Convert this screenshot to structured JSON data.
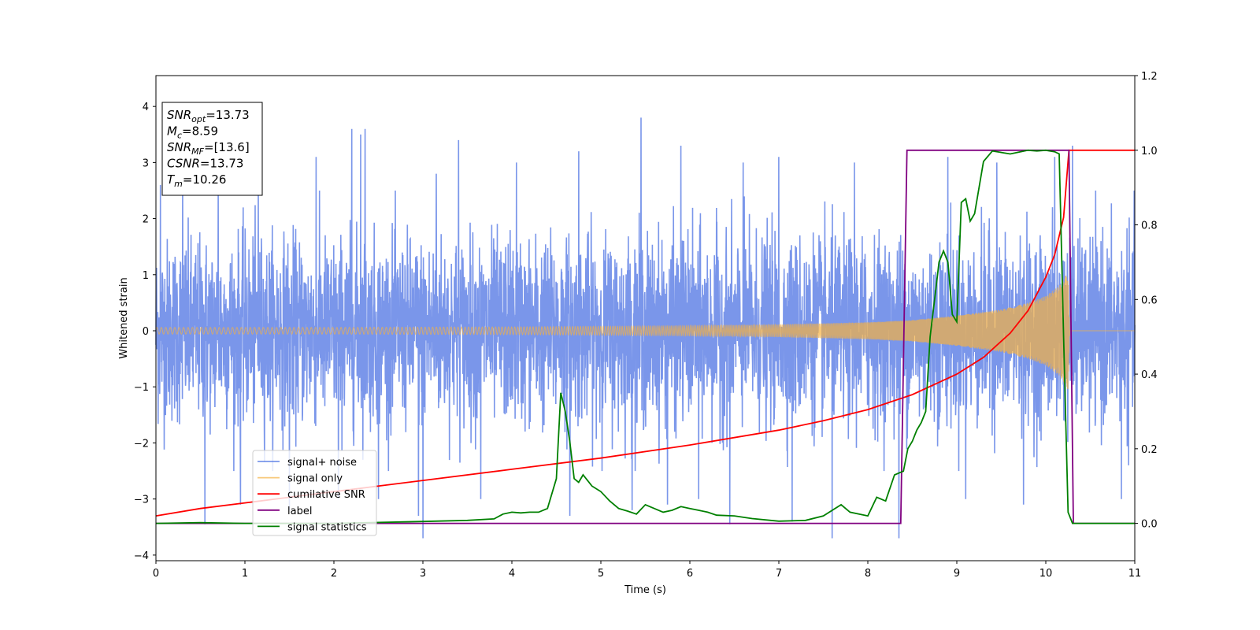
{
  "chart_data": {
    "type": "line",
    "xlabel": "Time (s)",
    "ylabel": "Whitened strain",
    "xlim": [
      0,
      11
    ],
    "ylim_left": [
      -4.1,
      4.55
    ],
    "ylim_right": [
      -0.1,
      1.2
    ],
    "x_ticks": [
      "0",
      "1",
      "2",
      "3",
      "4",
      "5",
      "6",
      "7",
      "8",
      "9",
      "10",
      "11"
    ],
    "y_left_ticks": [
      "−4",
      "−3",
      "−2",
      "−1",
      "0",
      "1",
      "2",
      "3",
      "4"
    ],
    "y_right_ticks": [
      "0.0",
      "0.2",
      "0.4",
      "0.6",
      "0.8",
      "1.0",
      "1.2"
    ],
    "legend_position": "lower-left",
    "info_box": [
      {
        "base": "SNR",
        "sub": "opt",
        "rest": "=13.73"
      },
      {
        "base": "M",
        "sub": "c",
        "rest": "=8.59"
      },
      {
        "base": "SNR",
        "sub": "MF",
        "rest": "=[13.6]"
      },
      {
        "base": "CSNR",
        "sub": "",
        "rest": "=13.73"
      },
      {
        "base": "T",
        "sub": "m",
        "rest": "=10.26"
      }
    ],
    "series": [
      {
        "name": "signal+ noise",
        "axis": "left",
        "color": "#4169e1",
        "kind": "noise",
        "approx_std": 0.95,
        "spikes": [
          [
            0.05,
            2.6
          ],
          [
            0.3,
            2.7
          ],
          [
            0.55,
            -3.45
          ],
          [
            0.7,
            2.5
          ],
          [
            0.95,
            -3.1
          ],
          [
            1.15,
            2.6
          ],
          [
            1.5,
            -3.2
          ],
          [
            1.8,
            3.1
          ],
          [
            2.05,
            -3.0
          ],
          [
            2.2,
            3.6
          ],
          [
            2.3,
            3.5
          ],
          [
            2.35,
            3.6
          ],
          [
            2.5,
            -3.0
          ],
          [
            2.95,
            -3.3
          ],
          [
            3.0,
            -3.7
          ],
          [
            3.15,
            2.8
          ],
          [
            3.4,
            3.4
          ],
          [
            3.65,
            -3.0
          ],
          [
            4.05,
            3.0
          ],
          [
            4.65,
            -3.3
          ],
          [
            4.75,
            3.2
          ],
          [
            5.35,
            -3.2
          ],
          [
            5.45,
            3.8
          ],
          [
            5.75,
            -3.1
          ],
          [
            5.9,
            3.3
          ],
          [
            6.1,
            -3.0
          ],
          [
            6.45,
            -3.45
          ],
          [
            6.6,
            3.0
          ],
          [
            7.0,
            3.1
          ],
          [
            7.15,
            -3.4
          ],
          [
            7.6,
            -3.7
          ],
          [
            7.85,
            3.0
          ],
          [
            8.35,
            -3.7
          ],
          [
            8.9,
            3.1
          ],
          [
            9.1,
            -3.0
          ],
          [
            9.45,
            3.0
          ],
          [
            9.75,
            -3.1
          ],
          [
            10.1,
            3.1
          ],
          [
            10.3,
            3.3
          ],
          [
            10.85,
            -3.0
          ]
        ]
      },
      {
        "name": "signal only",
        "axis": "left",
        "color": "#f5b041",
        "kind": "chirp",
        "amplitude": [
          [
            0,
            0.06
          ],
          [
            2,
            0.06
          ],
          [
            4,
            0.07
          ],
          [
            6,
            0.09
          ],
          [
            7,
            0.11
          ],
          [
            8,
            0.15
          ],
          [
            8.5,
            0.19
          ],
          [
            9,
            0.27
          ],
          [
            9.5,
            0.38
          ],
          [
            9.8,
            0.5
          ],
          [
            10.0,
            0.62
          ],
          [
            10.15,
            0.8
          ],
          [
            10.25,
            1.05
          ],
          [
            10.27,
            0.0
          ],
          [
            11,
            0.0
          ]
        ]
      },
      {
        "name": "cumilative SNR",
        "axis": "right",
        "color": "#ff0000",
        "points": [
          [
            0,
            0.02
          ],
          [
            0.5,
            0.04
          ],
          [
            1,
            0.055
          ],
          [
            2,
            0.085
          ],
          [
            3,
            0.115
          ],
          [
            4,
            0.145
          ],
          [
            5,
            0.175
          ],
          [
            6,
            0.21
          ],
          [
            7,
            0.25
          ],
          [
            7.5,
            0.275
          ],
          [
            8,
            0.305
          ],
          [
            8.5,
            0.345
          ],
          [
            9,
            0.4
          ],
          [
            9.3,
            0.445
          ],
          [
            9.6,
            0.51
          ],
          [
            9.8,
            0.57
          ],
          [
            10.0,
            0.66
          ],
          [
            10.1,
            0.72
          ],
          [
            10.2,
            0.82
          ],
          [
            10.26,
            1.0
          ],
          [
            11,
            1.0
          ]
        ]
      },
      {
        "name": "label",
        "axis": "right",
        "color": "#800080",
        "points": [
          [
            0,
            0.0
          ],
          [
            8.37,
            0.0
          ],
          [
            8.44,
            1.0
          ],
          [
            10.26,
            1.0
          ],
          [
            10.31,
            0.0
          ],
          [
            11,
            0.0
          ]
        ]
      },
      {
        "name": "signal statistics",
        "axis": "right",
        "color": "#008000",
        "points": [
          [
            0,
            0.0
          ],
          [
            0.5,
            0.002
          ],
          [
            1,
            0.0
          ],
          [
            2,
            0.0
          ],
          [
            3,
            0.005
          ],
          [
            3.5,
            0.008
          ],
          [
            3.8,
            0.012
          ],
          [
            3.9,
            0.025
          ],
          [
            4.0,
            0.03
          ],
          [
            4.1,
            0.028
          ],
          [
            4.2,
            0.03
          ],
          [
            4.3,
            0.03
          ],
          [
            4.4,
            0.04
          ],
          [
            4.5,
            0.12
          ],
          [
            4.55,
            0.35
          ],
          [
            4.6,
            0.3
          ],
          [
            4.65,
            0.22
          ],
          [
            4.7,
            0.12
          ],
          [
            4.75,
            0.11
          ],
          [
            4.8,
            0.13
          ],
          [
            4.9,
            0.1
          ],
          [
            5.0,
            0.085
          ],
          [
            5.1,
            0.06
          ],
          [
            5.2,
            0.04
          ],
          [
            5.3,
            0.033
          ],
          [
            5.4,
            0.025
          ],
          [
            5.5,
            0.05
          ],
          [
            5.6,
            0.04
          ],
          [
            5.7,
            0.03
          ],
          [
            5.8,
            0.035
          ],
          [
            5.9,
            0.045
          ],
          [
            6.0,
            0.04
          ],
          [
            6.1,
            0.035
          ],
          [
            6.2,
            0.03
          ],
          [
            6.3,
            0.022
          ],
          [
            6.5,
            0.02
          ],
          [
            6.7,
            0.013
          ],
          [
            7.0,
            0.006
          ],
          [
            7.3,
            0.008
          ],
          [
            7.5,
            0.02
          ],
          [
            7.7,
            0.05
          ],
          [
            7.8,
            0.03
          ],
          [
            8.0,
            0.02
          ],
          [
            8.1,
            0.07
          ],
          [
            8.2,
            0.06
          ],
          [
            8.3,
            0.13
          ],
          [
            8.4,
            0.14
          ],
          [
            8.45,
            0.2
          ],
          [
            8.5,
            0.22
          ],
          [
            8.55,
            0.25
          ],
          [
            8.6,
            0.27
          ],
          [
            8.65,
            0.3
          ],
          [
            8.7,
            0.5
          ],
          [
            8.75,
            0.6
          ],
          [
            8.8,
            0.7
          ],
          [
            8.85,
            0.73
          ],
          [
            8.9,
            0.7
          ],
          [
            8.95,
            0.56
          ],
          [
            9.0,
            0.54
          ],
          [
            9.05,
            0.86
          ],
          [
            9.1,
            0.87
          ],
          [
            9.15,
            0.81
          ],
          [
            9.2,
            0.83
          ],
          [
            9.3,
            0.97
          ],
          [
            9.4,
            0.998
          ],
          [
            9.5,
            0.994
          ],
          [
            9.6,
            0.99
          ],
          [
            9.7,
            0.995
          ],
          [
            9.8,
            1.0
          ],
          [
            9.9,
            0.998
          ],
          [
            10.0,
            1.0
          ],
          [
            10.1,
            0.996
          ],
          [
            10.15,
            0.99
          ],
          [
            10.2,
            0.5
          ],
          [
            10.25,
            0.03
          ],
          [
            10.3,
            0.0
          ],
          [
            11,
            0.0
          ]
        ]
      }
    ]
  }
}
